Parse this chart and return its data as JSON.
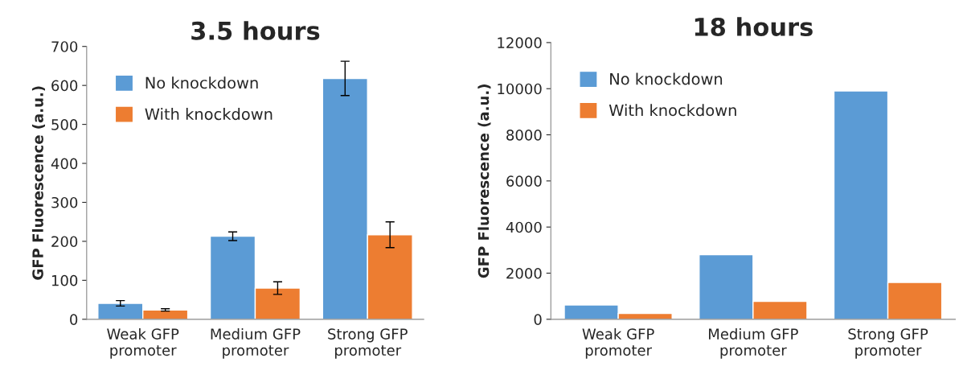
{
  "chart_data": [
    {
      "type": "bar",
      "title": "3.5 hours",
      "ylabel": "GFP Fluorescence (a.u.)",
      "categories": [
        "Weak GFP\npromoter",
        "Medium GFP\npromoter",
        "Strong GFP\npromoter"
      ],
      "series": [
        {
          "name": "No knockdown",
          "color": "#5b9bd5",
          "values": [
            41,
            213,
            618
          ],
          "errors": [
            7,
            11,
            44
          ]
        },
        {
          "name": "With knockdown",
          "color": "#ed7d31",
          "values": [
            24,
            80,
            217
          ],
          "errors": [
            3,
            16,
            33
          ]
        }
      ],
      "ylim": [
        0,
        700
      ],
      "yticks": [
        0,
        100,
        200,
        300,
        400,
        500,
        600,
        700
      ],
      "grid": false,
      "legend": "top left"
    },
    {
      "type": "bar",
      "title": "18 hours",
      "ylabel": "GFP Fluorescence (a.u.)",
      "categories": [
        "Weak GFP\npromoter",
        "Medium GFP\npromoter",
        "Strong GFP\npromoter"
      ],
      "series": [
        {
          "name": "No knockdown",
          "color": "#5b9bd5",
          "values": [
            620,
            2800,
            9900
          ]
        },
        {
          "name": "With knockdown",
          "color": "#ed7d31",
          "values": [
            250,
            780,
            1600
          ]
        }
      ],
      "ylim": [
        0,
        12000
      ],
      "yticks": [
        0,
        2000,
        4000,
        6000,
        8000,
        10000,
        12000
      ],
      "grid": false,
      "legend": "top left"
    }
  ]
}
